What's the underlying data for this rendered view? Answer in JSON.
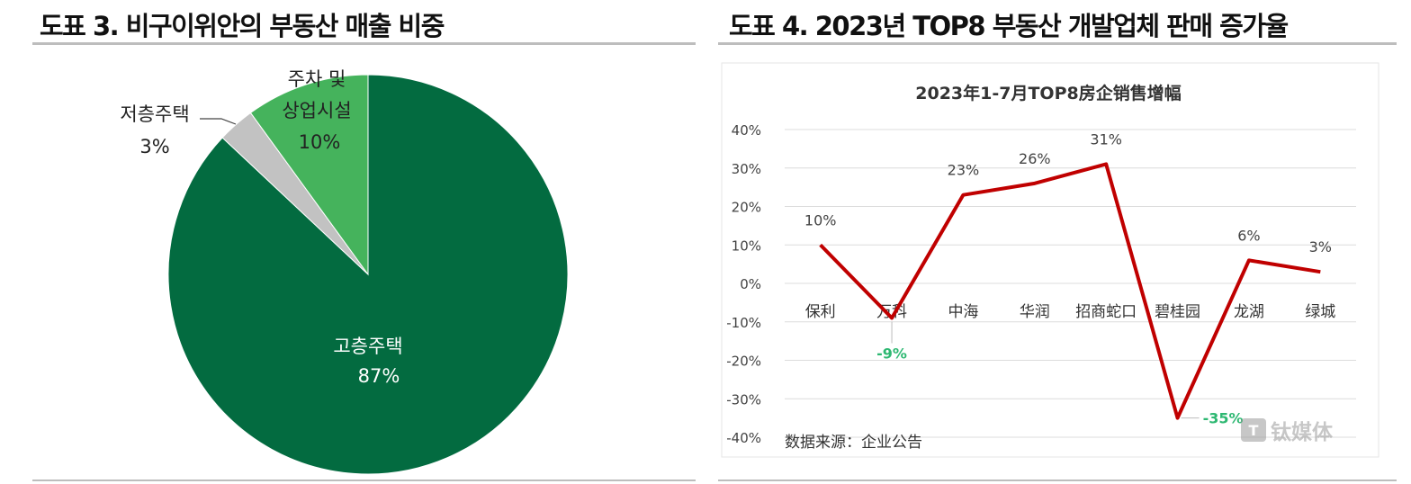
{
  "left": {
    "title": "도표 3. 비구이위안의 부동산 매출 비중",
    "chart_data": {
      "type": "pie",
      "slices": [
        {
          "label": "고층주택",
          "value": 87,
          "value_label": "87%",
          "color": "#036b40"
        },
        {
          "label": "저층주택",
          "value": 3,
          "value_label": "3%",
          "color": "#c2c2c2"
        },
        {
          "label_lines": [
            "주차 및",
            "상업시설"
          ],
          "value": 10,
          "value_label": "10%",
          "color": "#45b35c"
        }
      ]
    }
  },
  "right": {
    "title": "도표 4. 2023년 TOP8 부동산 개발업체 판매 증가율",
    "chart_data": {
      "type": "line",
      "title": "2023年1-7月TOP8房企销售增幅",
      "categories": [
        "保利",
        "万科",
        "中海",
        "华润",
        "招商蛇口",
        "碧桂园",
        "龙湖",
        "绿城"
      ],
      "values": [
        10,
        -9,
        23,
        26,
        31,
        -35,
        6,
        3
      ],
      "data_labels": [
        "10%",
        "-9%",
        "23%",
        "26%",
        "31%",
        "-35%",
        "6%",
        "3%"
      ],
      "yticks": [
        "40%",
        "30%",
        "20%",
        "10%",
        "0%",
        "-10%",
        "-20%",
        "-30%",
        "-40%"
      ],
      "ylim": [
        -40,
        40
      ],
      "line_color": "#c00000",
      "negative_label_color": "#2eb872",
      "source": "数据来源：企业公告",
      "watermark": "钛媒体",
      "grid": true
    }
  }
}
